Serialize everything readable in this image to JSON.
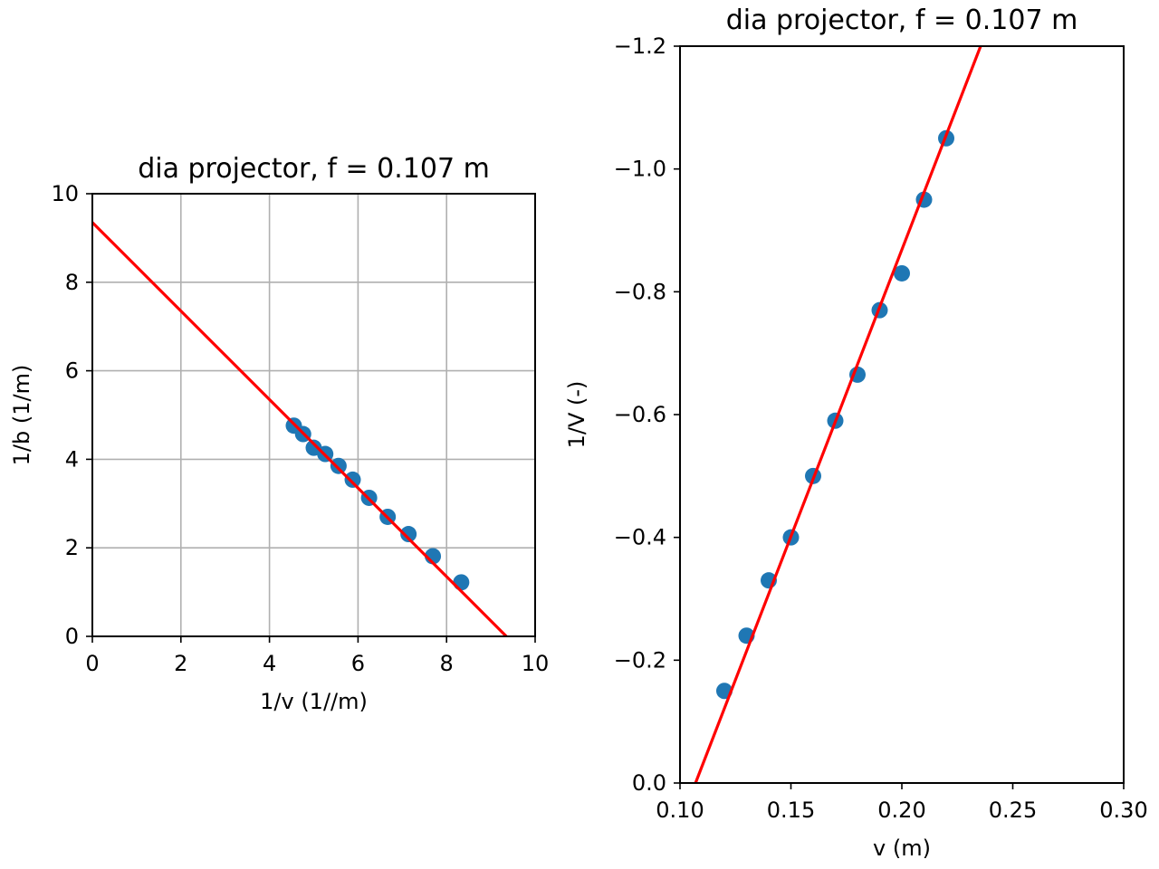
{
  "chart_data": [
    {
      "type": "scatter",
      "title": "dia projector, f = 0.107 m",
      "xlabel": "1/v (1//m)",
      "ylabel": "1/b (1/m)",
      "xlim": [
        0,
        10
      ],
      "ylim": [
        0,
        10
      ],
      "xticks": [
        "0",
        "2",
        "4",
        "6",
        "8",
        "10"
      ],
      "yticks": [
        "0",
        "2",
        "4",
        "6",
        "8",
        "10"
      ],
      "grid": true,
      "series": [
        {
          "kind": "points",
          "color": "#1f77b4",
          "points": [
            [
              4.55,
              4.76
            ],
            [
              4.76,
              4.57
            ],
            [
              5.0,
              4.26
            ],
            [
              5.26,
              4.12
            ],
            [
              5.56,
              3.85
            ],
            [
              5.88,
              3.54
            ],
            [
              6.25,
              3.13
            ],
            [
              6.67,
              2.7
            ],
            [
              7.14,
              2.31
            ],
            [
              7.69,
              1.81
            ],
            [
              8.33,
              1.22
            ]
          ]
        },
        {
          "kind": "line",
          "color": "#ff0000",
          "points": [
            [
              0,
              9.35
            ],
            [
              9.35,
              0
            ]
          ]
        }
      ]
    },
    {
      "type": "scatter",
      "title": "dia projector, f = 0.107 m",
      "xlabel": "v (m)",
      "ylabel": "1/V (-)",
      "xlim": [
        0.1,
        0.3
      ],
      "ylim": [
        0.0,
        -1.2
      ],
      "xticks": [
        "0.10",
        "0.15",
        "0.20",
        "0.25",
        "0.30"
      ],
      "yticks": [
        "0.0",
        "−0.2",
        "−0.4",
        "−0.6",
        "−0.8",
        "−1.0",
        "−1.2"
      ],
      "grid": false,
      "series": [
        {
          "kind": "points",
          "color": "#1f77b4",
          "points": [
            [
              0.12,
              -0.15
            ],
            [
              0.13,
              -0.24
            ],
            [
              0.14,
              -0.33
            ],
            [
              0.15,
              -0.4
            ],
            [
              0.16,
              -0.5
            ],
            [
              0.17,
              -0.59
            ],
            [
              0.18,
              -0.665
            ],
            [
              0.19,
              -0.77
            ],
            [
              0.2,
              -0.83
            ],
            [
              0.21,
              -0.95
            ],
            [
              0.22,
              -1.05
            ]
          ]
        },
        {
          "kind": "line",
          "color": "#ff0000",
          "points": [
            [
              0.107,
              0.0
            ],
            [
              0.2355,
              -1.2
            ]
          ]
        }
      ]
    }
  ]
}
